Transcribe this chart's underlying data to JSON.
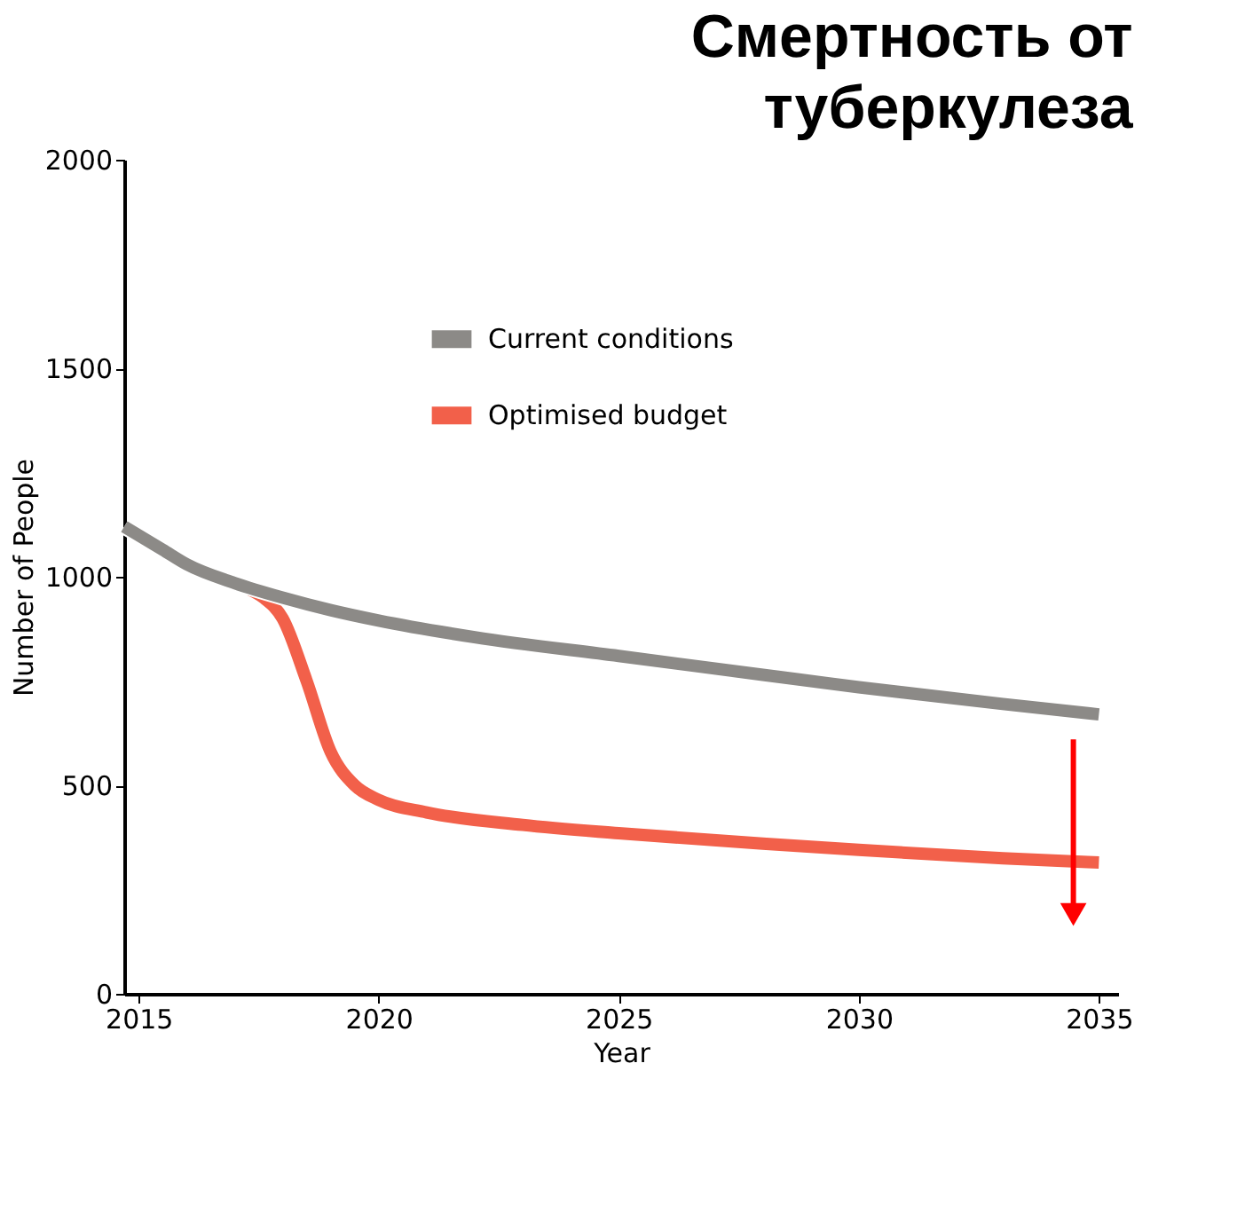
{
  "chart_data": {
    "type": "line",
    "title": "Смертность от туберкулеза",
    "xlabel": "Year",
    "ylabel": "Number of People",
    "xlim": [
      2014.7,
      2035.4
    ],
    "xticks": [
      2015,
      2020,
      2025,
      2030,
      2035
    ],
    "ylim": [
      0,
      2000
    ],
    "yticks": [
      0,
      500,
      1000,
      1500,
      2000
    ],
    "grid": false,
    "legend": "top",
    "line_style": "solid",
    "marker": "none",
    "series": [
      {
        "name": "Current conditions",
        "color": "#8c8a87",
        "x": [
          2014.7,
          2015.5,
          2016,
          2017,
          2018,
          2019,
          2020,
          2022,
          2025,
          2028,
          2030,
          2033,
          2035
        ],
        "values": [
          1120,
          1065,
          1030,
          985,
          950,
          920,
          895,
          855,
          810,
          765,
          735,
          695,
          670
        ]
      },
      {
        "name": "Optimised budget",
        "color": "#f2604a",
        "x": [
          2017.3,
          2017.6,
          2018,
          2018.5,
          2019,
          2019.5,
          2020,
          2021,
          2023,
          2025,
          2028,
          2030,
          2033,
          2035
        ],
        "values": [
          970,
          950,
          900,
          750,
          580,
          500,
          465,
          435,
          405,
          385,
          360,
          345,
          325,
          315
        ]
      }
    ]
  }
}
